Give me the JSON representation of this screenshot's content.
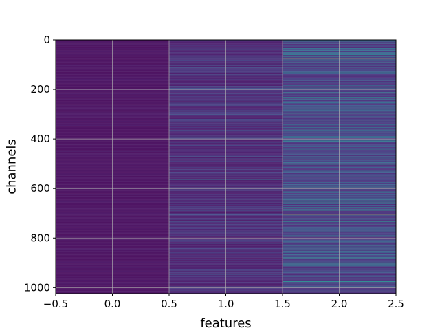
{
  "chart_data": {
    "type": "heatmap",
    "title": "",
    "xlabel": "features",
    "ylabel": "channels",
    "xlim": [
      -0.5,
      2.5
    ],
    "ylim": [
      1024,
      0
    ],
    "rows": 1024,
    "columns": [
      0,
      1,
      2
    ],
    "x_ticks": [
      {
        "value": -0.5,
        "label": "−0.5"
      },
      {
        "value": 0.0,
        "label": "0.0"
      },
      {
        "value": 0.5,
        "label": "0.5"
      },
      {
        "value": 1.0,
        "label": "1.0"
      },
      {
        "value": 1.5,
        "label": "1.5"
      },
      {
        "value": 2.0,
        "label": "2.0"
      },
      {
        "value": 2.5,
        "label": "2.5"
      }
    ],
    "y_ticks": [
      {
        "value": 0,
        "label": "0"
      },
      {
        "value": 200,
        "label": "200"
      },
      {
        "value": 400,
        "label": "400"
      },
      {
        "value": 600,
        "label": "600"
      },
      {
        "value": 800,
        "label": "800"
      },
      {
        "value": 1000,
        "label": "1000"
      }
    ],
    "grid": true,
    "colormap": "viridis",
    "column_levels": [
      {
        "feature": 0,
        "typical_intensity": 0.02,
        "spread": 0.04
      },
      {
        "feature": 1,
        "typical_intensity": 0.12,
        "spread": 0.22
      },
      {
        "feature": 2,
        "typical_intensity": 0.28,
        "spread": 0.38
      }
    ],
    "highlights": [
      {
        "feature": 1,
        "channel": 695,
        "intensity": 1.0
      },
      {
        "feature": 2,
        "channel": 75,
        "intensity": 0.95
      },
      {
        "feature": 2,
        "channel": 705,
        "intensity": 0.92
      },
      {
        "feature": 1,
        "channel": 565,
        "intensity": 0.45
      },
      {
        "feature": 1,
        "channel": 300,
        "intensity": 0.4
      },
      {
        "feature": 2,
        "channel": 410,
        "intensity": 0.6
      },
      {
        "feature": 2,
        "channel": 600,
        "intensity": 0.7
      },
      {
        "feature": 2,
        "channel": 690,
        "intensity": 0.65
      },
      {
        "feature": 2,
        "channel": 760,
        "intensity": 0.6
      },
      {
        "feature": 2,
        "channel": 945,
        "intensity": 0.55
      }
    ]
  }
}
